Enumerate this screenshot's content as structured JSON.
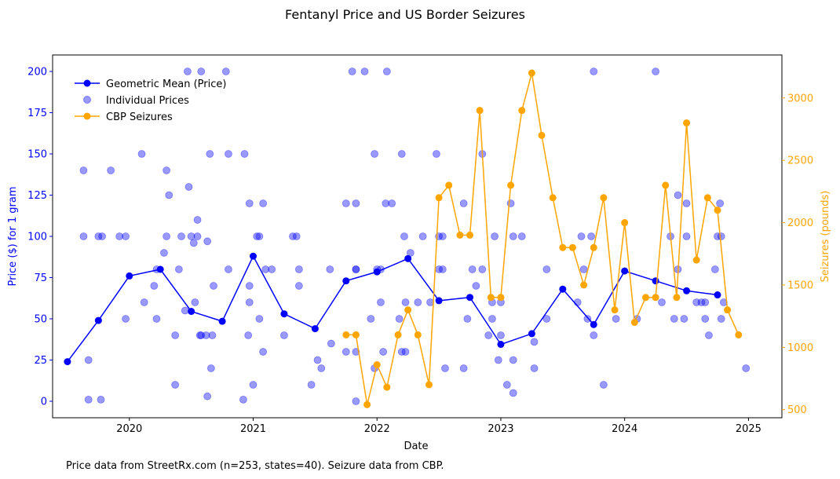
{
  "chart_data": {
    "type": "line",
    "title": "Fentanyl Price and US Border Seizures",
    "xlabel": "Date",
    "ylabel_left": "Price ($) for 1 gram",
    "ylabel_right": "Seizures (pounds)",
    "footnote": "Price data from StreetRx.com (n=253, states=40). Seizure data from CBP.",
    "xlim": [
      2019.38,
      2025.27
    ],
    "ylim_left": [
      -10,
      210
    ],
    "ylim_right": [
      435,
      3345
    ],
    "x_ticks": [
      {
        "value": 2020,
        "label": "2020"
      },
      {
        "value": 2021,
        "label": "2021"
      },
      {
        "value": 2022,
        "label": "2022"
      },
      {
        "value": 2023,
        "label": "2023"
      },
      {
        "value": 2024,
        "label": "2024"
      },
      {
        "value": 2025,
        "label": "2025"
      }
    ],
    "y_ticks_left": [
      {
        "value": 0,
        "label": "0"
      },
      {
        "value": 25,
        "label": "25"
      },
      {
        "value": 50,
        "label": "50"
      },
      {
        "value": 75,
        "label": "75"
      },
      {
        "value": 100,
        "label": "100"
      },
      {
        "value": 125,
        "label": "125"
      },
      {
        "value": 150,
        "label": "150"
      },
      {
        "value": 175,
        "label": "175"
      },
      {
        "value": 200,
        "label": "200"
      }
    ],
    "y_ticks_right": [
      {
        "value": 500,
        "label": "500"
      },
      {
        "value": 1000,
        "label": "1000"
      },
      {
        "value": 1500,
        "label": "1500"
      },
      {
        "value": 2000,
        "label": "2000"
      },
      {
        "value": 2500,
        "label": "2500"
      },
      {
        "value": 3000,
        "label": "3000"
      }
    ],
    "legend": {
      "position": "upper-left",
      "entries": [
        {
          "label": "Geometric Mean (Price)",
          "kind": "line-marker",
          "color": "#0000ff"
        },
        {
          "label": "Individual Prices",
          "kind": "scatter",
          "color": "#0000ff"
        },
        {
          "label": "CBP Seizures",
          "kind": "line-marker",
          "color": "#ffa500"
        }
      ]
    },
    "colors": {
      "price_axis": "#0000ff",
      "seizure_axis": "#ffa500",
      "mean_line": "#0000ff",
      "scatter": "#0000ff",
      "seizure_line": "#ffa500"
    },
    "series": [
      {
        "name": "Geometric Mean (Price)",
        "axis": "left",
        "points": [
          [
            2019.5,
            24
          ],
          [
            2019.75,
            49
          ],
          [
            2020.0,
            76
          ],
          [
            2020.25,
            80
          ],
          [
            2020.5,
            54.5
          ],
          [
            2020.75,
            48.5
          ],
          [
            2021.0,
            88
          ],
          [
            2021.25,
            53
          ],
          [
            2021.5,
            44
          ],
          [
            2021.75,
            73
          ],
          [
            2022.0,
            78.5
          ],
          [
            2022.25,
            86.5
          ],
          [
            2022.5,
            61
          ],
          [
            2022.75,
            63
          ],
          [
            2023.0,
            34.5
          ],
          [
            2023.25,
            41
          ],
          [
            2023.5,
            68
          ],
          [
            2023.75,
            46.5
          ],
          [
            2024.0,
            79
          ],
          [
            2024.25,
            73
          ],
          [
            2024.5,
            67
          ],
          [
            2024.75,
            64.5
          ]
        ]
      },
      {
        "name": "Individual Prices",
        "axis": "left",
        "points": [
          [
            2019.63,
            140
          ],
          [
            2019.63,
            100
          ],
          [
            2019.67,
            25
          ],
          [
            2019.67,
            1
          ],
          [
            2019.75,
            100
          ],
          [
            2019.78,
            100
          ],
          [
            2019.77,
            1
          ],
          [
            2019.85,
            140
          ],
          [
            2019.92,
            100
          ],
          [
            2019.97,
            100
          ],
          [
            2019.97,
            50
          ],
          [
            2020.1,
            150
          ],
          [
            2020.12,
            60
          ],
          [
            2020.2,
            70
          ],
          [
            2020.22,
            80
          ],
          [
            2020.22,
            50
          ],
          [
            2020.28,
            90
          ],
          [
            2020.3,
            140
          ],
          [
            2020.3,
            100
          ],
          [
            2020.32,
            125
          ],
          [
            2020.37,
            40
          ],
          [
            2020.37,
            10
          ],
          [
            2020.4,
            80
          ],
          [
            2020.42,
            100
          ],
          [
            2020.45,
            55
          ],
          [
            2020.47,
            200
          ],
          [
            2020.48,
            130
          ],
          [
            2020.5,
            100
          ],
          [
            2020.52,
            96
          ],
          [
            2020.53,
            60
          ],
          [
            2020.55,
            110
          ],
          [
            2020.55,
            100
          ],
          [
            2020.57,
            40
          ],
          [
            2020.58,
            40
          ],
          [
            2020.58,
            200
          ],
          [
            2020.62,
            40
          ],
          [
            2020.63,
            97
          ],
          [
            2020.63,
            3
          ],
          [
            2020.65,
            150
          ],
          [
            2020.66,
            20
          ],
          [
            2020.67,
            40
          ],
          [
            2020.68,
            70
          ],
          [
            2020.78,
            200
          ],
          [
            2020.8,
            150
          ],
          [
            2020.8,
            80
          ],
          [
            2020.92,
            1
          ],
          [
            2020.93,
            150
          ],
          [
            2020.96,
            40
          ],
          [
            2020.97,
            120
          ],
          [
            2020.97,
            70
          ],
          [
            2020.97,
            60
          ],
          [
            2021.0,
            10
          ],
          [
            2021.03,
            100
          ],
          [
            2021.05,
            100
          ],
          [
            2021.05,
            50
          ],
          [
            2021.08,
            120
          ],
          [
            2021.08,
            30
          ],
          [
            2021.1,
            80
          ],
          [
            2021.15,
            80
          ],
          [
            2021.25,
            40
          ],
          [
            2021.32,
            100
          ],
          [
            2021.35,
            100
          ],
          [
            2021.37,
            70
          ],
          [
            2021.37,
            80
          ],
          [
            2021.47,
            10
          ],
          [
            2021.52,
            25
          ],
          [
            2021.55,
            20
          ],
          [
            2021.62,
            80
          ],
          [
            2021.63,
            35
          ],
          [
            2021.75,
            120
          ],
          [
            2021.75,
            30
          ],
          [
            2021.8,
            200
          ],
          [
            2021.83,
            120
          ],
          [
            2021.83,
            80
          ],
          [
            2021.83,
            30
          ],
          [
            2021.83,
            80
          ],
          [
            2021.83,
            0
          ],
          [
            2021.9,
            200
          ],
          [
            2021.95,
            50
          ],
          [
            2021.98,
            150
          ],
          [
            2021.98,
            20
          ],
          [
            2022.0,
            80
          ],
          [
            2022.03,
            80
          ],
          [
            2022.03,
            60
          ],
          [
            2022.05,
            30
          ],
          [
            2022.07,
            120
          ],
          [
            2022.08,
            200
          ],
          [
            2022.12,
            120
          ],
          [
            2022.18,
            50
          ],
          [
            2022.2,
            150
          ],
          [
            2022.2,
            30
          ],
          [
            2022.22,
            100
          ],
          [
            2022.23,
            60
          ],
          [
            2022.23,
            30
          ],
          [
            2022.27,
            90
          ],
          [
            2022.33,
            60
          ],
          [
            2022.37,
            100
          ],
          [
            2022.43,
            60
          ],
          [
            2022.48,
            150
          ],
          [
            2022.5,
            100
          ],
          [
            2022.5,
            80
          ],
          [
            2022.53,
            100
          ],
          [
            2022.53,
            80
          ],
          [
            2022.55,
            20
          ],
          [
            2022.7,
            120
          ],
          [
            2022.7,
            20
          ],
          [
            2022.73,
            50
          ],
          [
            2022.77,
            80
          ],
          [
            2022.8,
            70
          ],
          [
            2022.85,
            150
          ],
          [
            2022.85,
            80
          ],
          [
            2022.9,
            40
          ],
          [
            2022.93,
            50
          ],
          [
            2022.93,
            60
          ],
          [
            2022.95,
            100
          ],
          [
            2022.98,
            25
          ],
          [
            2023.0,
            60
          ],
          [
            2023.0,
            40
          ],
          [
            2023.05,
            10
          ],
          [
            2023.08,
            120
          ],
          [
            2023.1,
            100
          ],
          [
            2023.1,
            25
          ],
          [
            2023.1,
            5
          ],
          [
            2023.17,
            100
          ],
          [
            2023.27,
            36
          ],
          [
            2023.27,
            20
          ],
          [
            2023.37,
            80
          ],
          [
            2023.37,
            50
          ],
          [
            2023.62,
            60
          ],
          [
            2023.65,
            100
          ],
          [
            2023.67,
            80
          ],
          [
            2023.7,
            50
          ],
          [
            2023.73,
            100
          ],
          [
            2023.75,
            200
          ],
          [
            2023.75,
            40
          ],
          [
            2023.83,
            10
          ],
          [
            2023.93,
            50
          ],
          [
            2024.1,
            50
          ],
          [
            2024.25,
            200
          ],
          [
            2024.3,
            60
          ],
          [
            2024.37,
            100
          ],
          [
            2024.4,
            50
          ],
          [
            2024.43,
            80
          ],
          [
            2024.43,
            125
          ],
          [
            2024.48,
            50
          ],
          [
            2024.5,
            120
          ],
          [
            2024.5,
            100
          ],
          [
            2024.58,
            60
          ],
          [
            2024.62,
            60
          ],
          [
            2024.65,
            60
          ],
          [
            2024.65,
            50
          ],
          [
            2024.68,
            40
          ],
          [
            2024.73,
            80
          ],
          [
            2024.75,
            100
          ],
          [
            2024.77,
            120
          ],
          [
            2024.78,
            100
          ],
          [
            2024.78,
            50
          ],
          [
            2024.8,
            60
          ],
          [
            2024.98,
            20
          ]
        ]
      },
      {
        "name": "CBP Seizures",
        "axis": "right",
        "points": [
          [
            2021.75,
            1100
          ],
          [
            2021.83,
            1100
          ],
          [
            2021.92,
            540
          ],
          [
            2022.0,
            860
          ],
          [
            2022.08,
            680
          ],
          [
            2022.17,
            1100
          ],
          [
            2022.25,
            1300
          ],
          [
            2022.33,
            1100
          ],
          [
            2022.42,
            700
          ],
          [
            2022.5,
            2200
          ],
          [
            2022.58,
            2300
          ],
          [
            2022.67,
            1900
          ],
          [
            2022.75,
            1900
          ],
          [
            2022.83,
            2900
          ],
          [
            2022.92,
            1400
          ],
          [
            2023.0,
            1400
          ],
          [
            2023.08,
            2300
          ],
          [
            2023.17,
            2900
          ],
          [
            2023.25,
            3200
          ],
          [
            2023.33,
            2700
          ],
          [
            2023.42,
            2200
          ],
          [
            2023.5,
            1800
          ],
          [
            2023.58,
            1800
          ],
          [
            2023.67,
            1500
          ],
          [
            2023.75,
            1800
          ],
          [
            2023.83,
            2200
          ],
          [
            2023.92,
            1300
          ],
          [
            2024.0,
            2000
          ],
          [
            2024.08,
            1200
          ],
          [
            2024.17,
            1400
          ],
          [
            2024.25,
            1400
          ],
          [
            2024.33,
            2300
          ],
          [
            2024.42,
            1400
          ],
          [
            2024.5,
            2800
          ],
          [
            2024.58,
            1700
          ],
          [
            2024.67,
            2200
          ],
          [
            2024.75,
            2100
          ],
          [
            2024.83,
            1300
          ],
          [
            2024.92,
            1100
          ]
        ]
      }
    ]
  }
}
